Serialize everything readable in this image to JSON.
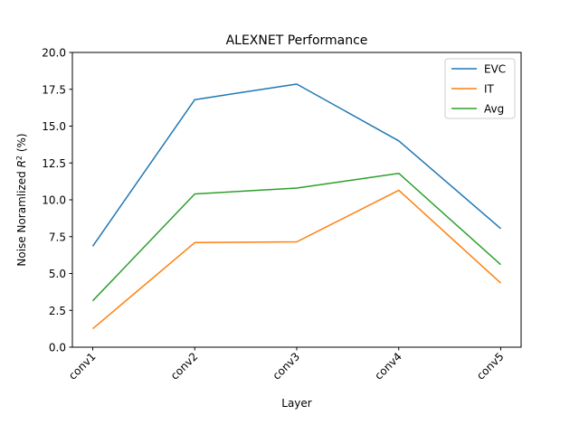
{
  "chart_data": {
    "type": "line",
    "title": "ALEXNET Performance",
    "xlabel": "Layer",
    "ylabel_prefix": "Noise Noramlized ",
    "ylabel_var": "R",
    "ylabel_sup": "2",
    "ylabel_suffix": " (%)",
    "categories": [
      "conv1",
      "conv2",
      "conv3",
      "conv4",
      "conv5"
    ],
    "ylim": [
      0,
      20
    ],
    "yticks": [
      0.0,
      2.5,
      5.0,
      7.5,
      10.0,
      12.5,
      15.0,
      17.5,
      20.0
    ],
    "grid": false,
    "legend_position": "top-right",
    "series": [
      {
        "name": "EVC",
        "color": "#1f77b4",
        "values": [
          6.85,
          16.8,
          17.85,
          14.0,
          8.05
        ]
      },
      {
        "name": "IT",
        "color": "#ff7f0e",
        "values": [
          1.25,
          7.1,
          7.15,
          10.65,
          4.35
        ]
      },
      {
        "name": "Avg",
        "color": "#2ca02c",
        "values": [
          3.15,
          10.4,
          10.8,
          11.8,
          5.6
        ]
      }
    ]
  }
}
